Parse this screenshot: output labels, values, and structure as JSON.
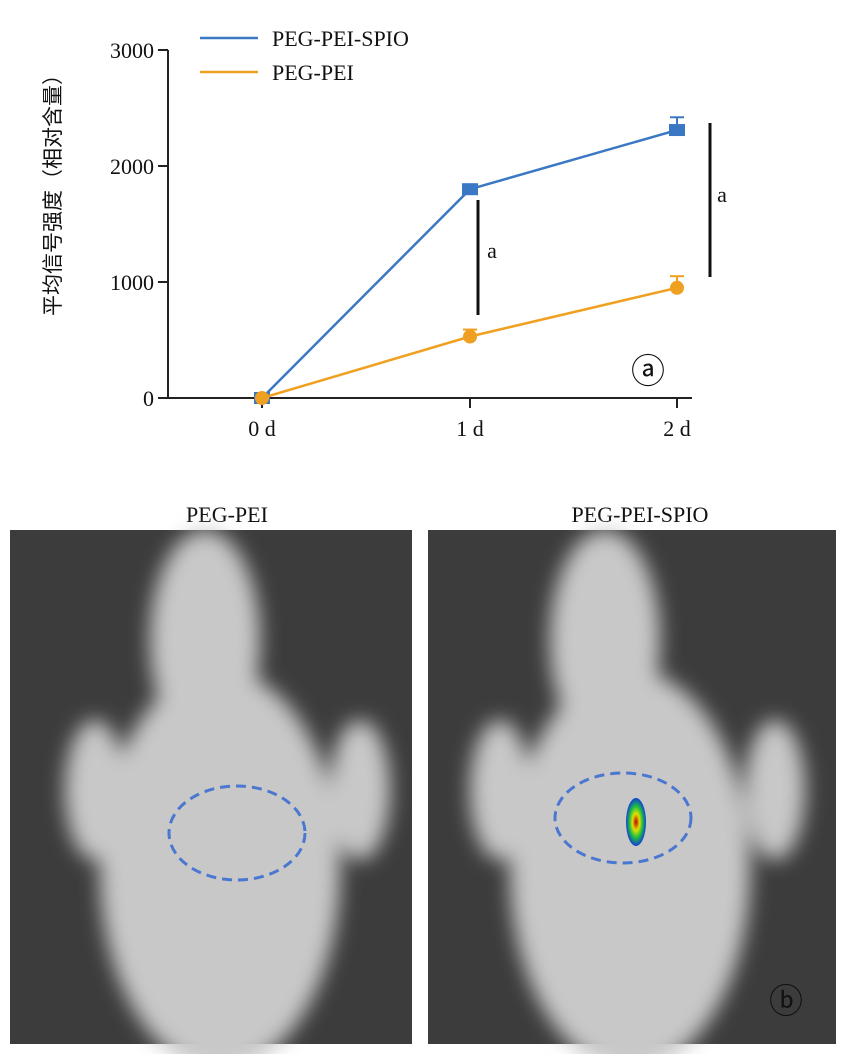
{
  "chart_data": {
    "type": "line",
    "y_label": "平均信号强度（相对含量）",
    "categories": [
      "0 d",
      "1 d",
      "2 d"
    ],
    "series": [
      {
        "name": "PEG-PEI-SPIO",
        "color": "#3a78c4",
        "values": [
          0,
          1800,
          2310
        ],
        "errors": [
          10,
          30,
          110
        ]
      },
      {
        "name": "PEG-PEI",
        "color": "#f0a020",
        "values": [
          0,
          530,
          950
        ],
        "errors": [
          0,
          60,
          100
        ]
      }
    ],
    "ylim": [
      0,
      3000
    ],
    "yticks": [
      0,
      1000,
      2000,
      3000
    ],
    "significance": [
      "a",
      "a"
    ],
    "panel_label": "ⓐ"
  },
  "panel_b": {
    "titles": [
      "PEG-PEI",
      "PEG-PEI-SPIO"
    ],
    "panel_label": "ⓑ"
  }
}
